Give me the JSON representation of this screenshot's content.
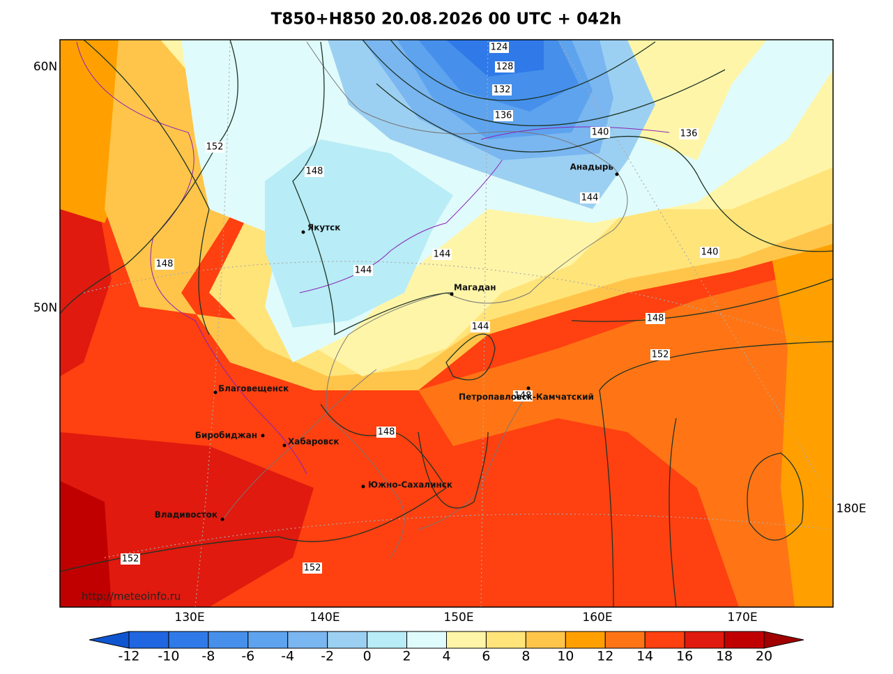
{
  "title": "T850+H850 20.08.2026 00 UTC + 042h",
  "lat_labels": [
    "60N",
    "50N"
  ],
  "lon_labels": [
    "130E",
    "140E",
    "150E",
    "160E",
    "170E",
    "180E"
  ],
  "contour_labels": [
    124,
    128,
    132,
    136,
    140,
    136,
    144,
    148,
    152,
    148,
    144,
    144,
    144,
    148,
    152,
    148,
    140,
    148,
    152,
    152
  ],
  "cities": [
    "Якутск",
    "Магадан",
    "Анадырь",
    "Благовещенск",
    "Биробиджан",
    "Хабаровск",
    "Петропавловск-Камчатский",
    "Южно-Сахалинск",
    "Владивосток"
  ],
  "url": "http://meteoinfo.ru",
  "colorbar": {
    "ticks": [
      -12,
      -10,
      -8,
      -6,
      -4,
      -2,
      0,
      2,
      4,
      6,
      8,
      10,
      12,
      14,
      16,
      18,
      20
    ],
    "colors": [
      "#1055d0",
      "#1f66e0",
      "#2f7ae8",
      "#4690ec",
      "#5ea3ee",
      "#7ab6f0",
      "#9cd0f2",
      "#b8ecf6",
      "#e0fbfb",
      "#fff5a8",
      "#ffe47a",
      "#ffc54a",
      "#ffa000",
      "#ff7515",
      "#ff4010",
      "#e01a0e",
      "#c00000",
      "#a00000"
    ]
  }
}
